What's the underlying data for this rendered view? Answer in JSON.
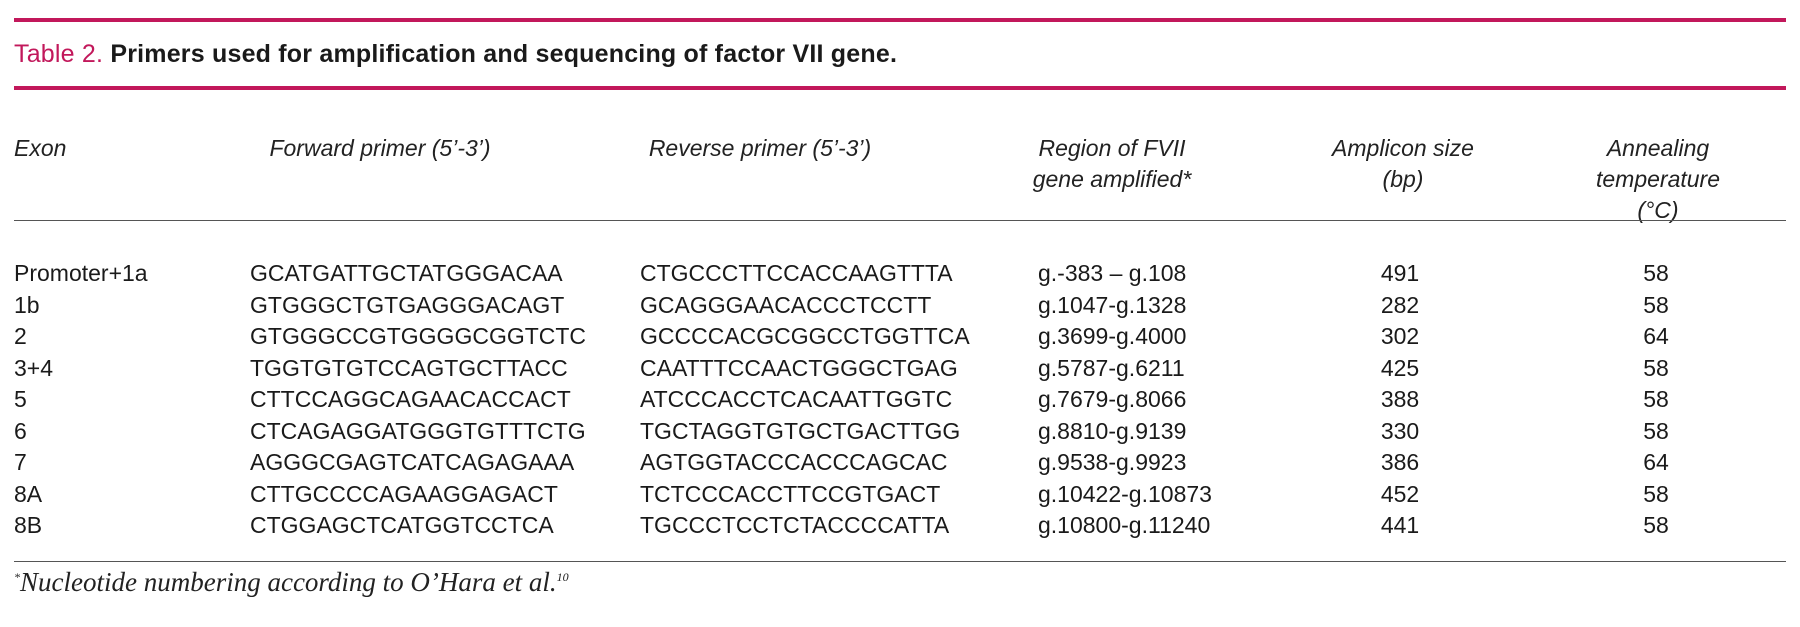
{
  "colors": {
    "accent": "#c2185b",
    "text": "#1a1a1a",
    "rule": "#555555"
  },
  "caption": {
    "label": "Table 2.",
    "title": "Primers used for amplification and sequencing of factor VII gene."
  },
  "headers": {
    "exon": "Exon",
    "forward": "Forward primer (5’-3’)",
    "reverse": "Reverse primer (5’-3’)",
    "region_line1": "Region of FVII",
    "region_line2": "gene amplified*",
    "amplicon_line1": "Amplicon size",
    "amplicon_line2": "(bp)",
    "annealing_line1": "Annealing",
    "annealing_line2": "temperature (°C)"
  },
  "rows": [
    {
      "exon": "Promoter+1a",
      "forward": "GCATGATTGCTATGGGACAA",
      "reverse": "CTGCCCTTCCACCAAGTTTA",
      "region": "g.-383 – g.108",
      "amplicon": "491",
      "annealing": "58"
    },
    {
      "exon": "1b",
      "forward": "GTGGGCTGTGAGGGACAGT",
      "reverse": "GCAGGGAACACCCTCCTT",
      "region": "g.1047-g.1328",
      "amplicon": "282",
      "annealing": "58"
    },
    {
      "exon": "2",
      "forward": "GTGGGCCGTGGGGCGGTCTC",
      "reverse": "GCCCCACGCGGCCTGGTTCA",
      "region": "g.3699-g.4000",
      "amplicon": "302",
      "annealing": "64"
    },
    {
      "exon": "3+4",
      "forward": "TGGTGTGTCCAGTGCTTACC",
      "reverse": "CAATTTCCAACTGGGCTGAG",
      "region": "g.5787-g.6211",
      "amplicon": "425",
      "annealing": "58"
    },
    {
      "exon": "5",
      "forward": "CTTCCAGGCAGAACACCACT",
      "reverse": "ATCCCACCTCACAATTGGTC",
      "region": "g.7679-g.8066",
      "amplicon": "388",
      "annealing": "58"
    },
    {
      "exon": "6",
      "forward": "CTCAGAGGATGGGTGTTTCTG",
      "reverse": "TGCTAGGTGTGCTGACTTGG",
      "region": "g.8810-g.9139",
      "amplicon": "330",
      "annealing": "58"
    },
    {
      "exon": "7",
      "forward": "AGGGCGAGTCATCAGAGAAA",
      "reverse": "AGTGGTACCCACCCAGCAC",
      "region": "g.9538-g.9923",
      "amplicon": "386",
      "annealing": "64"
    },
    {
      "exon": "8A",
      "forward": "CTTGCCCCAGAAGGAGACT",
      "reverse": "TCTCCCACCTTCCGTGACT",
      "region": "g.10422-g.10873",
      "amplicon": "452",
      "annealing": "58"
    },
    {
      "exon": "8B",
      "forward": "CTGGAGCTCATGGTCCTCA",
      "reverse": "TGCCCTCCTCTACCCCATTA",
      "region": "g.10800-g.11240",
      "amplicon": "441",
      "annealing": "58"
    }
  ],
  "footnote": {
    "marker": "*",
    "text": "Nucleotide numbering according to O’Hara et al.",
    "ref": "10"
  }
}
